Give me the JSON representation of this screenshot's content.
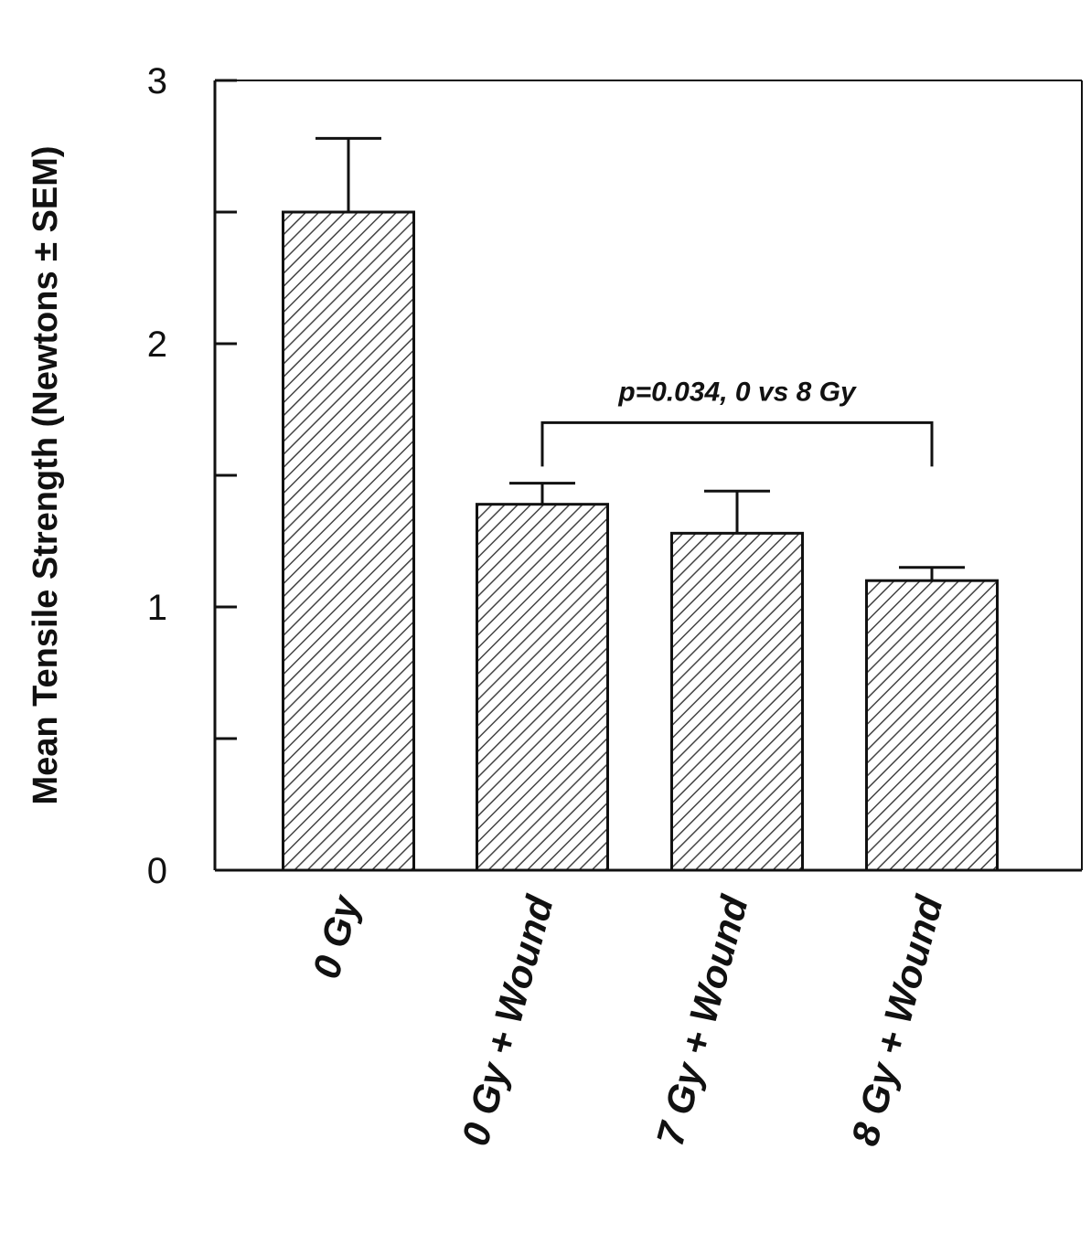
{
  "chart_data": {
    "type": "bar",
    "title": "",
    "xlabel": "",
    "ylabel": "Mean Tensile Strength (Newtons ± SEM)",
    "categories": [
      "0 Gy",
      "0 Gy + Wound",
      "7 Gy + Wound",
      "8 Gy + Wound"
    ],
    "values": [
      2.5,
      1.39,
      1.28,
      1.1
    ],
    "errors": [
      0.28,
      0.08,
      0.16,
      0.05
    ],
    "ylim": [
      0,
      3
    ],
    "yticks": [
      0,
      0.5,
      1,
      1.5,
      2,
      2.5,
      3
    ],
    "ytick_labels": [
      "0",
      "",
      "1",
      "",
      "2",
      "",
      "3"
    ],
    "grid": false,
    "bar_fill": "diagonal-hatch",
    "colors": {
      "bar_stroke": "#111111",
      "hatch": "#444444"
    },
    "annotation": {
      "text": "p=0.034, 0 vs 8 Gy",
      "between": [
        "0 Gy + Wound",
        "8 Gy + Wound"
      ],
      "bracket_y": 1.7
    }
  }
}
